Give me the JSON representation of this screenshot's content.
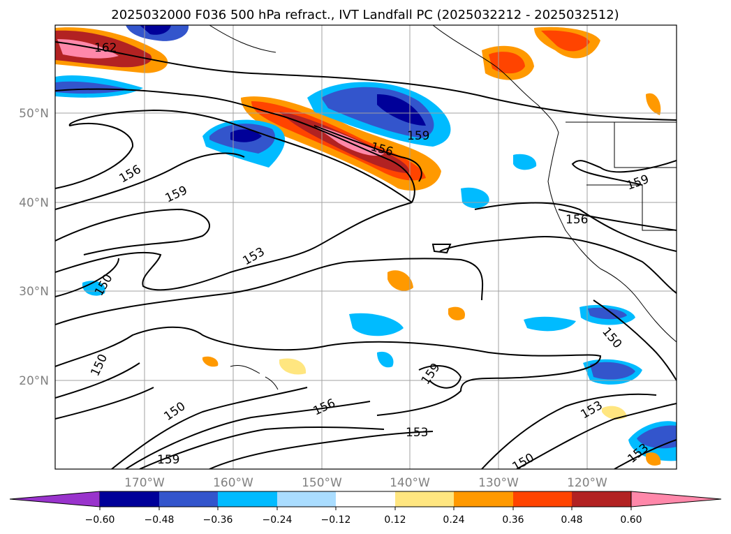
{
  "title": "2025032000 F036 500 hPa refract., IVT Landfall PC (2025032212 - 2025032512)",
  "map": {
    "longitude_labels": [
      "170°W",
      "160°W",
      "150°W",
      "140°W",
      "130°W",
      "120°W"
    ],
    "latitude_labels": [
      "50°N",
      "40°N",
      "30°N",
      "20°N"
    ],
    "contour_labels": [
      "162",
      "156",
      "159",
      "156",
      "159",
      "159",
      "156",
      "153",
      "150",
      "150",
      "150",
      "150",
      "156",
      "153",
      "159",
      "153",
      "150",
      "153",
      "159"
    ]
  },
  "colorbar": {
    "tick_labels": [
      "−0.60",
      "−0.48",
      "−0.36",
      "−0.24",
      "−0.12",
      "0.12",
      "0.24",
      "0.36",
      "0.48",
      "0.60"
    ],
    "colors": [
      "#9933cc",
      "#000099",
      "#3355cc",
      "#00bbff",
      "#aaddff",
      "#ffffff",
      "#ffe680",
      "#ff9900",
      "#ff4400",
      "#b22222",
      "#ff88aa"
    ]
  }
}
